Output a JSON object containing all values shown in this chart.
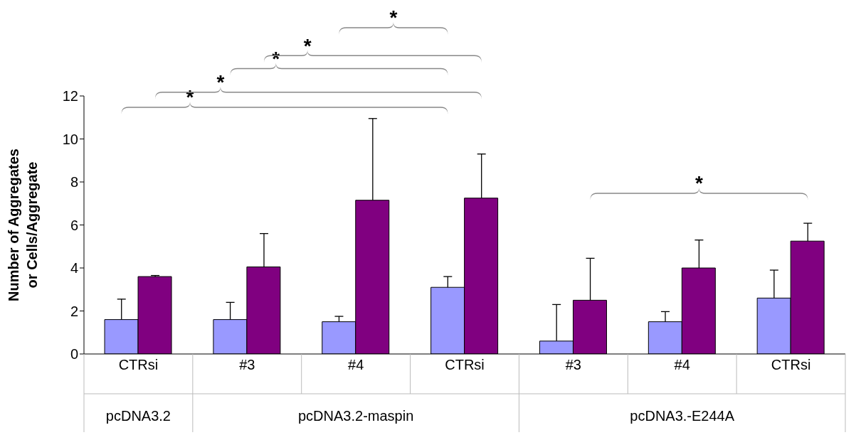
{
  "chart_data": {
    "type": "bar",
    "ylabel": "Number of Aggregates or Cells/Aggregate",
    "categories": [
      "CTRsi",
      "#3",
      "#4",
      "CTRsi",
      "#3",
      "#4",
      "CTRsi"
    ],
    "series": [
      {
        "color": "#9999ff",
        "values": [
          1.6,
          1.6,
          1.5,
          3.1,
          0.6,
          1.5,
          2.6
        ],
        "errors": [
          [
            1.6,
            2.55
          ],
          [
            1.6,
            2.4
          ],
          [
            1.5,
            1.75
          ],
          [
            3.1,
            3.6
          ],
          [
            0.6,
            2.3
          ],
          [
            1.5,
            1.97
          ],
          [
            2.6,
            3.9
          ]
        ]
      },
      {
        "color": "#800080",
        "values": [
          3.6,
          4.05,
          7.15,
          7.25,
          2.5,
          4.0,
          5.25
        ],
        "errors": [
          [
            3.6,
            3.65
          ],
          [
            4.05,
            5.6
          ],
          [
            7.15,
            10.95
          ],
          [
            7.25,
            9.3
          ],
          [
            2.5,
            4.45
          ],
          [
            4.0,
            5.3
          ],
          [
            5.25,
            6.08
          ]
        ]
      }
    ],
    "ylim": [
      0,
      12
    ],
    "yticks": [
      0,
      2,
      4,
      6,
      8,
      10,
      12
    ],
    "grid": false,
    "legend": false,
    "annotations": [
      "*",
      "*",
      "*",
      "*",
      "*",
      "*",
      "pcDNA3.2",
      "pcDNA3.2-maspin",
      "pcDNA3.-E244A"
    ]
  }
}
